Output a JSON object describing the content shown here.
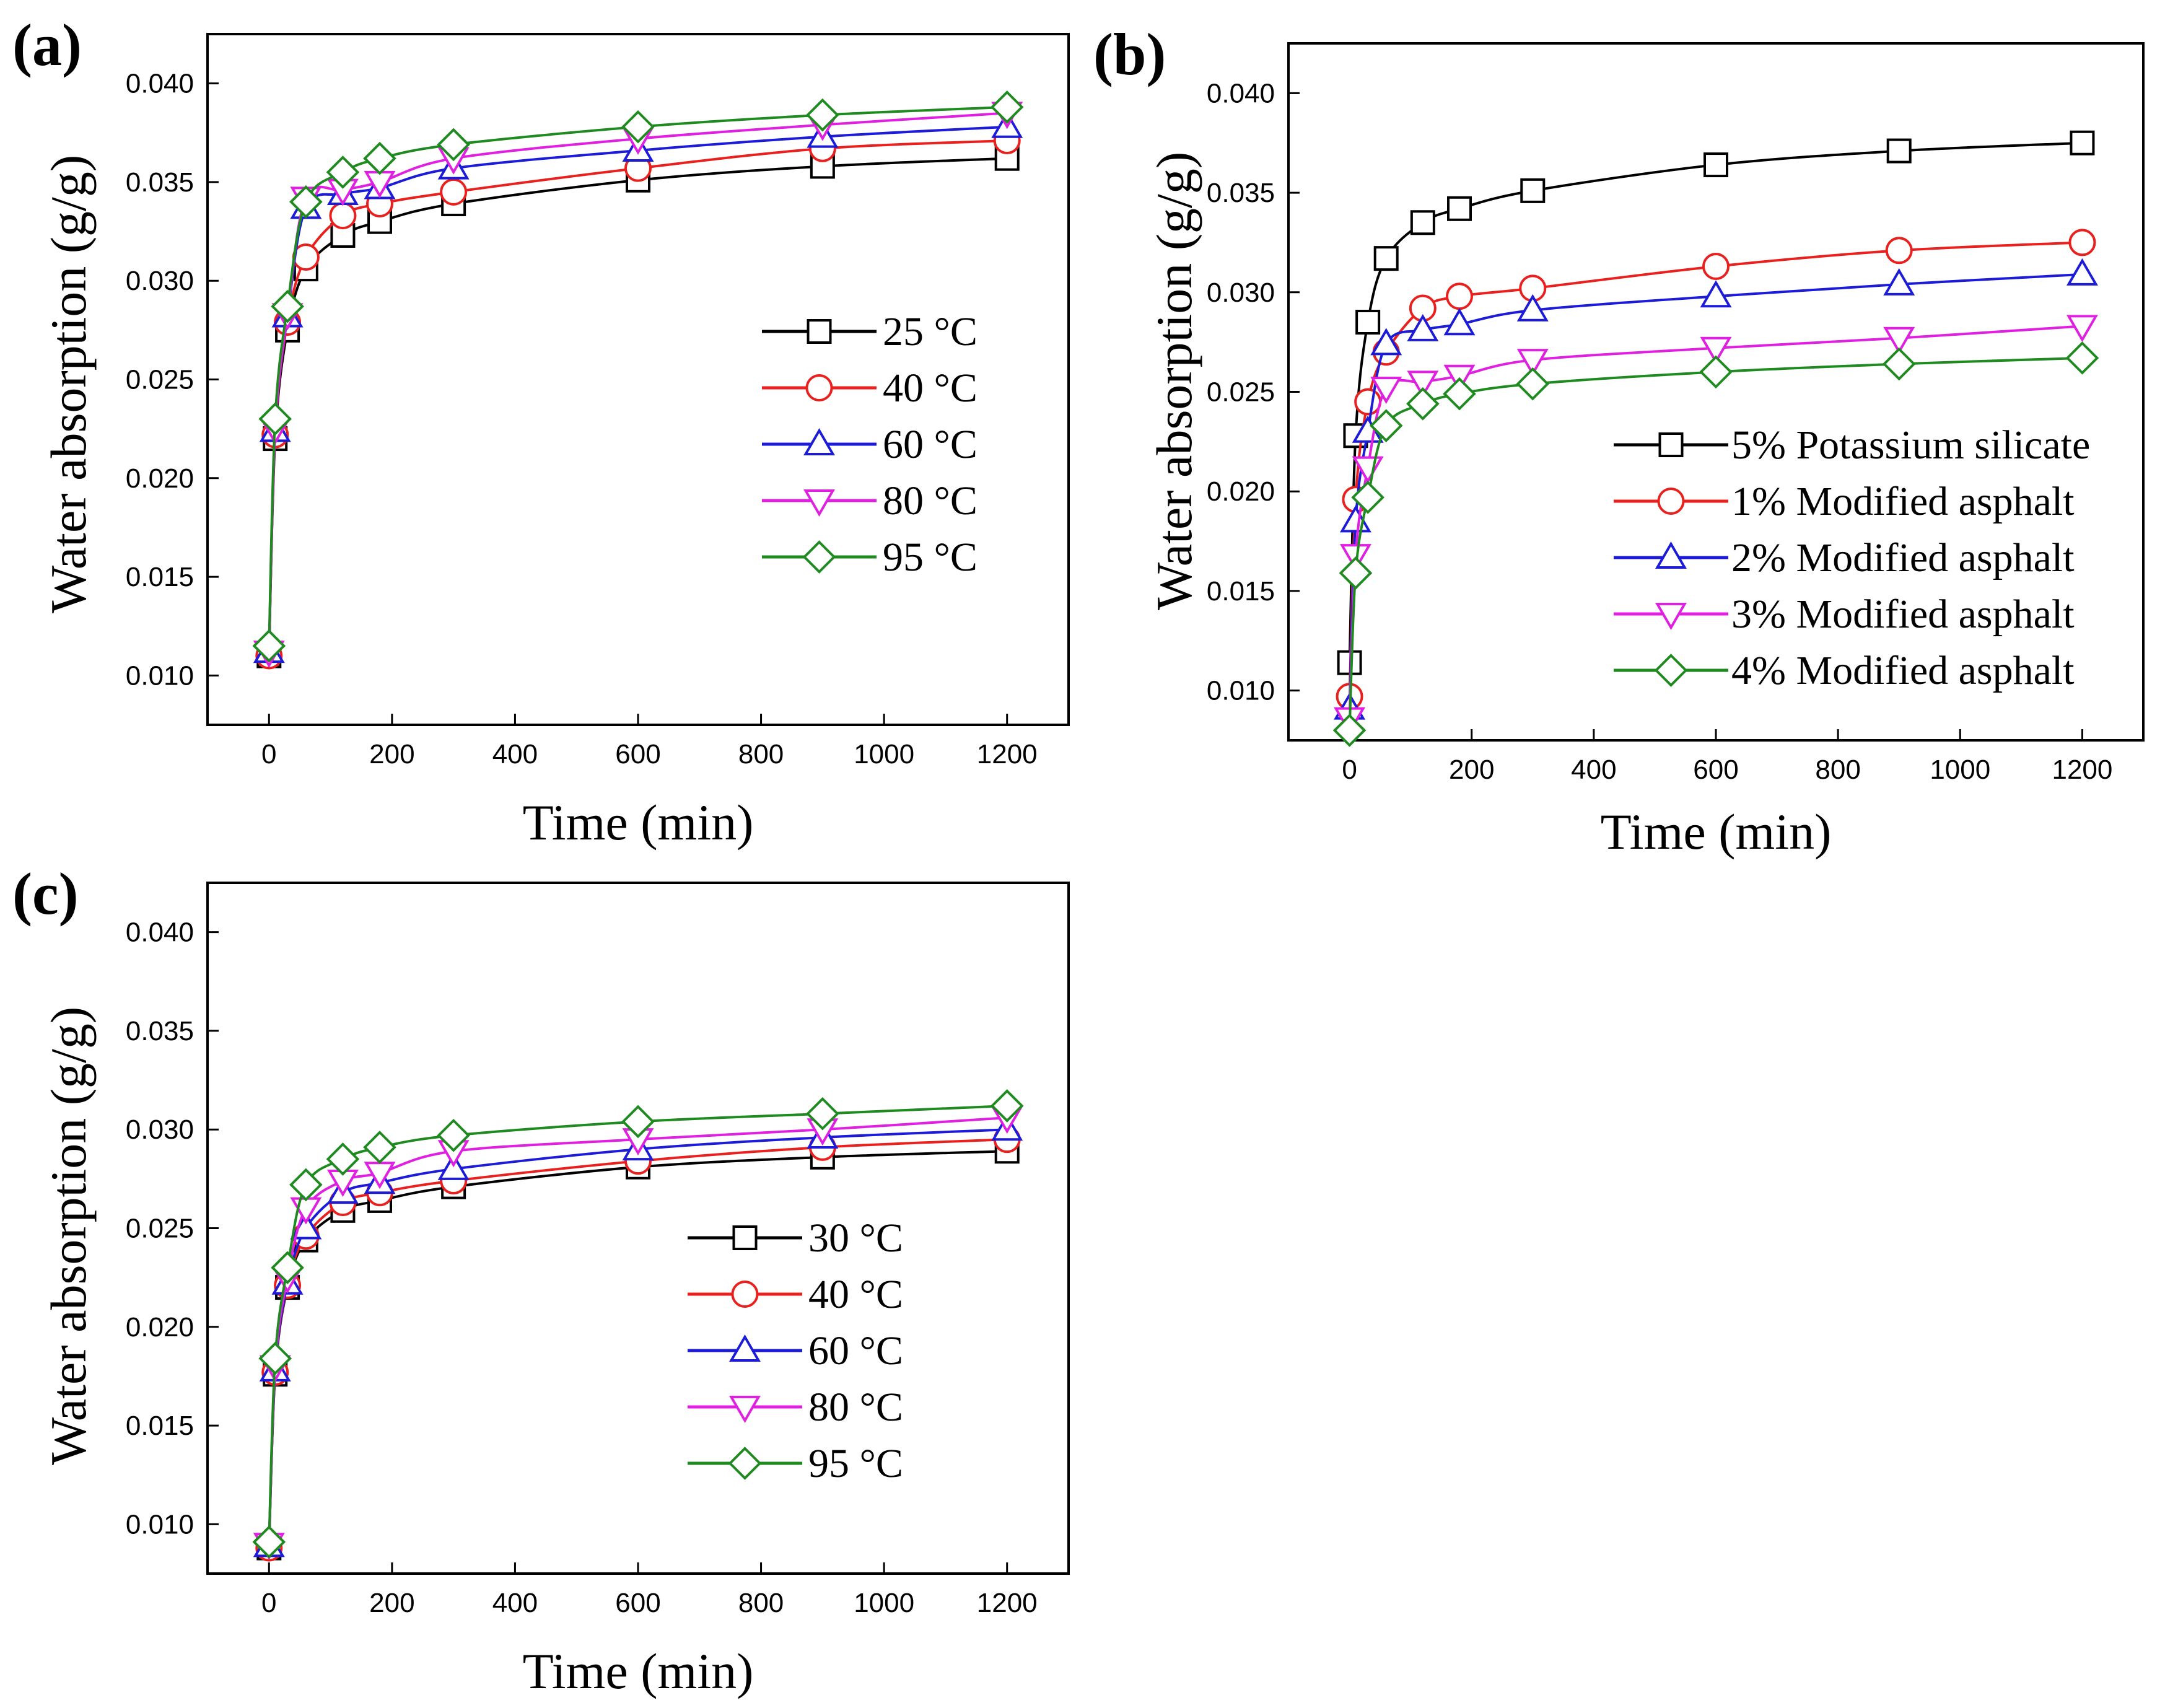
{
  "chart_data": [
    {
      "type": "line",
      "panel_label": "(a)",
      "xlabel": "Time (min)",
      "ylabel": "Water absorption (g/g)",
      "xlim": [
        -100,
        1300
      ],
      "ylim": [
        0.0075,
        0.0425
      ],
      "xticks": [
        0,
        200,
        400,
        600,
        800,
        1000,
        1200
      ],
      "yticks": [
        0.01,
        0.015,
        0.02,
        0.025,
        0.03,
        0.035,
        0.04
      ],
      "ytick_labels": [
        "0.010",
        "0.015",
        "0.020",
        "0.025",
        "0.030",
        "0.035",
        "0.040"
      ],
      "legend_position": "center-right",
      "x": [
        0,
        10,
        30,
        60,
        120,
        180,
        300,
        600,
        900,
        1200
      ],
      "series": [
        {
          "name": "25 °C",
          "color": "#000000",
          "marker": "square",
          "values": [
            0.011,
            0.022,
            0.0275,
            0.0306,
            0.0323,
            0.033,
            0.0339,
            0.0351,
            0.0358,
            0.0362
          ]
        },
        {
          "name": "40 °C",
          "color": "#e8201e",
          "marker": "circle",
          "values": [
            0.011,
            0.0222,
            0.0279,
            0.0312,
            0.0333,
            0.0339,
            0.0345,
            0.0357,
            0.0367,
            0.0371
          ]
        },
        {
          "name": "60 °C",
          "color": "#1c1cd8",
          "marker": "triangle-up",
          "values": [
            0.0112,
            0.0224,
            0.0282,
            0.0337,
            0.0344,
            0.0347,
            0.0357,
            0.0366,
            0.0373,
            0.0378
          ]
        },
        {
          "name": "80 °C",
          "color": "#e020e0",
          "marker": "triangle-down",
          "values": [
            0.0112,
            0.0225,
            0.0283,
            0.0342,
            0.0346,
            0.035,
            0.0362,
            0.0372,
            0.0379,
            0.0385
          ]
        },
        {
          "name": "95 °C",
          "color": "#1f8a1f",
          "marker": "diamond",
          "values": [
            0.0115,
            0.023,
            0.0287,
            0.034,
            0.0355,
            0.0362,
            0.0369,
            0.0378,
            0.0384,
            0.0388
          ]
        }
      ]
    },
    {
      "type": "line",
      "panel_label": "(b)",
      "xlabel": "Time (min)",
      "ylabel": "Water absorption (g/g)",
      "xlim": [
        -100,
        1300
      ],
      "ylim": [
        0.0075,
        0.0425
      ],
      "xticks": [
        0,
        200,
        400,
        600,
        800,
        1000,
        1200
      ],
      "yticks": [
        0.01,
        0.015,
        0.02,
        0.025,
        0.03,
        0.035,
        0.04
      ],
      "ytick_labels": [
        "0.010",
        "0.015",
        "0.020",
        "0.025",
        "0.030",
        "0.035",
        "0.040"
      ],
      "legend_position": "lower-right",
      "x": [
        0,
        10,
        30,
        60,
        120,
        180,
        300,
        600,
        900,
        1200
      ],
      "series": [
        {
          "name": "5% Potassium silicate",
          "color": "#000000",
          "marker": "square",
          "values": [
            0.0114,
            0.0228,
            0.0285,
            0.0317,
            0.0335,
            0.0342,
            0.0351,
            0.0364,
            0.0371,
            0.0375
          ]
        },
        {
          "name": "1% Modified asphalt",
          "color": "#e8201e",
          "marker": "circle",
          "values": [
            0.0097,
            0.0196,
            0.0245,
            0.027,
            0.0292,
            0.0298,
            0.0302,
            0.0313,
            0.0321,
            0.0325
          ]
        },
        {
          "name": "2% Modified asphalt",
          "color": "#1c1cd8",
          "marker": "triangle-up",
          "values": [
            0.0091,
            0.0185,
            0.023,
            0.0274,
            0.0281,
            0.0284,
            0.0291,
            0.0298,
            0.0304,
            0.0309
          ]
        },
        {
          "name": "3% Modified asphalt",
          "color": "#e020e0",
          "marker": "triangle-down",
          "values": [
            0.0086,
            0.0168,
            0.0212,
            0.0252,
            0.0255,
            0.0258,
            0.0266,
            0.0272,
            0.0277,
            0.0283
          ]
        },
        {
          "name": "4% Modified asphalt",
          "color": "#1f8a1f",
          "marker": "diamond",
          "values": [
            0.008,
            0.0159,
            0.0197,
            0.0233,
            0.0244,
            0.0249,
            0.0254,
            0.026,
            0.0264,
            0.0267
          ]
        }
      ]
    },
    {
      "type": "line",
      "panel_label": "(c)",
      "xlabel": "Time (min)",
      "ylabel": "Water absorption (g/g)",
      "xlim": [
        -100,
        1300
      ],
      "ylim": [
        0.0075,
        0.0425
      ],
      "xticks": [
        0,
        200,
        400,
        600,
        800,
        1000,
        1200
      ],
      "yticks": [
        0.01,
        0.015,
        0.02,
        0.025,
        0.03,
        0.035,
        0.04
      ],
      "ytick_labels": [
        "0.010",
        "0.015",
        "0.020",
        "0.025",
        "0.030",
        "0.035",
        "0.040"
      ],
      "legend_position": "center",
      "x": [
        0,
        10,
        30,
        60,
        120,
        180,
        300,
        600,
        900,
        1200
      ],
      "series": [
        {
          "name": "30 °C",
          "color": "#000000",
          "marker": "square",
          "values": [
            0.0088,
            0.0176,
            0.022,
            0.0244,
            0.0259,
            0.0264,
            0.0271,
            0.0281,
            0.0286,
            0.0289
          ]
        },
        {
          "name": "40 °C",
          "color": "#e8201e",
          "marker": "circle",
          "values": [
            0.0088,
            0.0177,
            0.0221,
            0.0246,
            0.0263,
            0.0268,
            0.0274,
            0.0284,
            0.0291,
            0.0295
          ]
        },
        {
          "name": "60 °C",
          "color": "#1c1cd8",
          "marker": "triangle-up",
          "values": [
            0.0089,
            0.0178,
            0.0222,
            0.025,
            0.0268,
            0.0273,
            0.028,
            0.029,
            0.0296,
            0.03
          ]
        },
        {
          "name": "80 °C",
          "color": "#e020e0",
          "marker": "triangle-down",
          "values": [
            0.009,
            0.018,
            0.0225,
            0.026,
            0.0274,
            0.0278,
            0.0289,
            0.0295,
            0.03,
            0.0306
          ]
        },
        {
          "name": "95 °C",
          "color": "#1f8a1f",
          "marker": "diamond",
          "values": [
            0.0091,
            0.0184,
            0.023,
            0.0272,
            0.0285,
            0.0291,
            0.0297,
            0.0304,
            0.0308,
            0.0312
          ]
        }
      ]
    }
  ]
}
